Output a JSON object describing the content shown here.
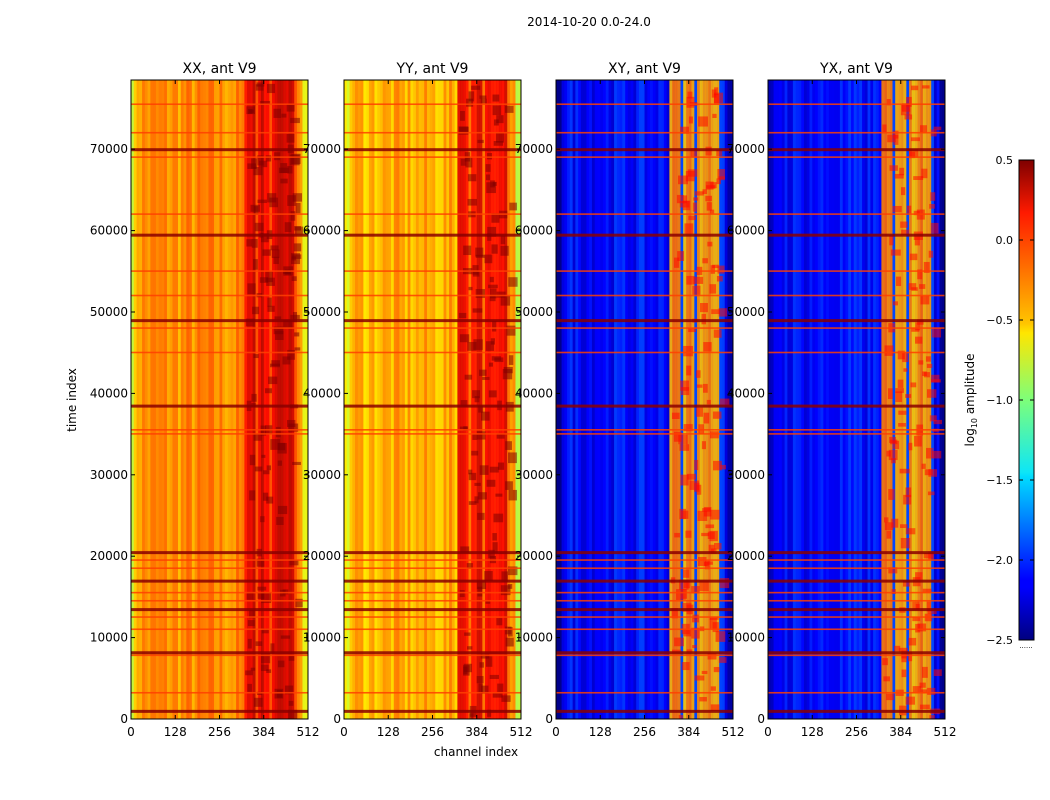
{
  "chart_data": {
    "type": "heatmap",
    "suptitle": "2014-10-20 0.0-24.0",
    "xlabel": "channel index",
    "ylabel": "time index",
    "xlim": [
      0,
      512
    ],
    "ylim": [
      0,
      78500
    ],
    "xticks": [
      0,
      128,
      256,
      384,
      512
    ],
    "yticks": [
      0,
      10000,
      20000,
      30000,
      40000,
      50000,
      60000,
      70000
    ],
    "colormap": "jet",
    "panels": [
      {
        "title": "XX, ant V9",
        "base_level": -0.3,
        "band_level": 0.15
      },
      {
        "title": "YY, ant V9",
        "base_level": -0.4,
        "band_level": 0.15
      },
      {
        "title": "XY, ant V9",
        "base_level": -2.1,
        "band_level": -0.4
      },
      {
        "title": "YX, ant V9",
        "base_level": -2.1,
        "band_level": -0.4
      }
    ],
    "bright_channel_range": [
      330,
      480
    ],
    "flagged_time_rows": [
      1000,
      3200,
      7800,
      8200,
      11000,
      12500,
      13500,
      14500,
      15500,
      17000,
      18500,
      19500,
      20500,
      35000,
      35500,
      38500,
      45000,
      48000,
      49000,
      52000,
      55000,
      59500,
      62000,
      69000,
      70000,
      72000,
      75500
    ],
    "colorbar": {
      "label": "log10 amplitude",
      "range": [
        -2.5,
        0.5
      ],
      "ticks": [
        0.5,
        0.0,
        -0.5,
        -1.0,
        -1.5,
        -2.0,
        -2.5
      ],
      "tick_labels": [
        "0.5",
        "0.0",
        "−0.5",
        "−1.0",
        "−1.5",
        "−2.0",
        "−2.5"
      ],
      "extra": "......"
    }
  }
}
